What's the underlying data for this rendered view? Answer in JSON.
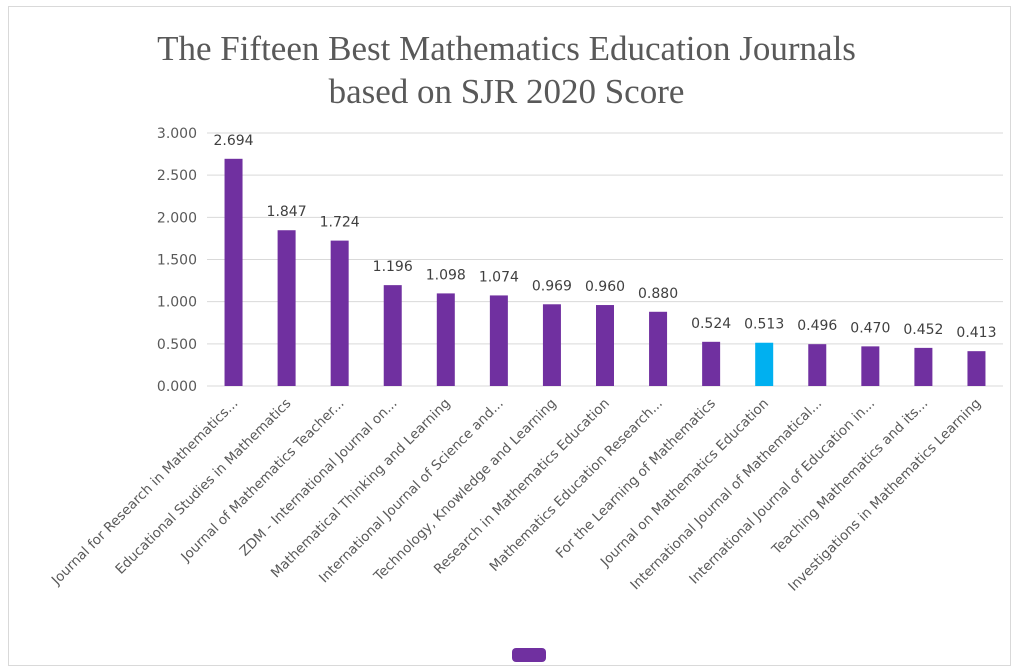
{
  "chart_data": {
    "type": "bar",
    "title": "The Fifteen Best Mathematics Education Journals",
    "subtitle": "based on SJR 2020 Score",
    "xlabel": "",
    "ylabel": "",
    "ylim": [
      0,
      3
    ],
    "yticks": [
      "0.000",
      "0.500",
      "1.000",
      "1.500",
      "2.000",
      "2.500",
      "3.000"
    ],
    "grid": true,
    "categories": [
      "Journal for Research in Mathematics...",
      "Educational Studies in Mathematics",
      "Journal of Mathematics Teacher...",
      "ZDM - International Journal on...",
      "Mathematical Thinking and Learning",
      "International Journal of Science and...",
      "Technology, Knowledge and Learning",
      "Research in Mathematics Education",
      "Mathematics Education Research...",
      "For the Learning of Mathematics",
      "Journal on Mathematics Education",
      "International Journal of Mathematical...",
      "International Journal of Education in...",
      "Teaching Mathematics and its...",
      "Investigations in Mathematics Learning"
    ],
    "values": [
      2.694,
      1.847,
      1.724,
      1.196,
      1.098,
      1.074,
      0.969,
      0.96,
      0.88,
      0.524,
      0.513,
      0.496,
      0.47,
      0.452,
      0.413
    ],
    "value_labels": [
      "2.694",
      "1.847",
      "1.724",
      "1.196",
      "1.098",
      "1.074",
      "0.969",
      "0.960",
      "0.880",
      "0.524",
      "0.513",
      "0.496",
      "0.470",
      "0.452",
      "0.413"
    ],
    "highlight_index": 10,
    "bar_color": "#7030a0",
    "highlight_color": "#00b0f0",
    "grid_color": "#d9d9d9"
  }
}
